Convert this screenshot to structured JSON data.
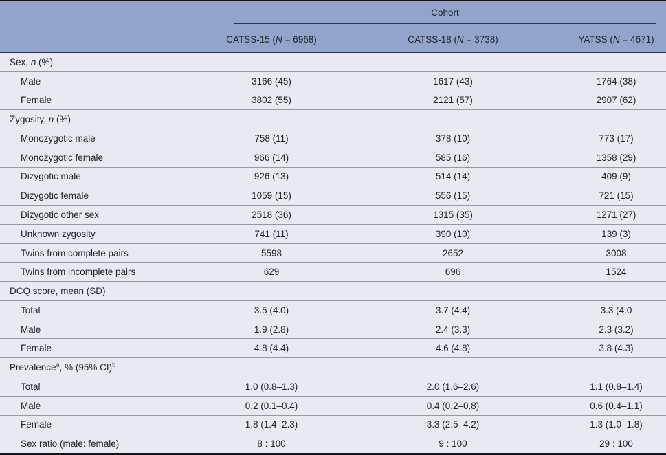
{
  "colors": {
    "header_bg": "#92A4CB",
    "body_bg": "#E8EAF3",
    "row_separator": "#9199A9",
    "dark_rule": "#2F3542",
    "border_black": "#111318",
    "text": "#1E222B"
  },
  "header": {
    "span_label": "Cohort",
    "columns": [
      {
        "name": "CATSS-15",
        "n_label": "N",
        "n_value": "6968"
      },
      {
        "name": "CATSS-18",
        "n_label": "N",
        "n_value": "3738"
      },
      {
        "name": "YATSS",
        "n_label": "N",
        "n_value": "4671"
      }
    ]
  },
  "rows": [
    {
      "kind": "section",
      "parts": [
        {
          "t": "Sex, "
        },
        {
          "t": "n",
          "s": "i"
        },
        {
          "t": " (%)"
        }
      ],
      "values": [
        "",
        "",
        ""
      ]
    },
    {
      "kind": "data",
      "parts": [
        {
          "t": "Male"
        }
      ],
      "values": [
        "3166 (45)",
        "1617 (43)",
        "1764 (38)"
      ]
    },
    {
      "kind": "data",
      "parts": [
        {
          "t": "Female"
        }
      ],
      "values": [
        "3802 (55)",
        "2121 (57)",
        "2907 (62)"
      ]
    },
    {
      "kind": "section",
      "parts": [
        {
          "t": "Zygosity, "
        },
        {
          "t": "n",
          "s": "i"
        },
        {
          "t": " (%)"
        }
      ],
      "values": [
        "",
        "",
        ""
      ]
    },
    {
      "kind": "data",
      "parts": [
        {
          "t": "Monozygotic male"
        }
      ],
      "values": [
        "758 (11)",
        "378 (10)",
        "773 (17)"
      ]
    },
    {
      "kind": "data",
      "parts": [
        {
          "t": "Monozygotic female"
        }
      ],
      "values": [
        "966 (14)",
        "585 (16)",
        "1358 (29)"
      ]
    },
    {
      "kind": "data",
      "parts": [
        {
          "t": "Dizygotic male"
        }
      ],
      "values": [
        "926 (13)",
        "514 (14)",
        "409 (9)"
      ]
    },
    {
      "kind": "data",
      "parts": [
        {
          "t": "Dizygotic female"
        }
      ],
      "values": [
        "1059 (15)",
        "556 (15)",
        "721 (15)"
      ]
    },
    {
      "kind": "data",
      "parts": [
        {
          "t": "Dizygotic other sex"
        }
      ],
      "values": [
        "2518 (36)",
        "1315 (35)",
        "1271 (27)"
      ]
    },
    {
      "kind": "data",
      "parts": [
        {
          "t": "Unknown zygosity"
        }
      ],
      "values": [
        "741 (11)",
        "390 (10)",
        "139 (3)"
      ]
    },
    {
      "kind": "data",
      "parts": [
        {
          "t": "Twins from complete pairs"
        }
      ],
      "values": [
        "5598",
        "2652",
        "3008"
      ]
    },
    {
      "kind": "data",
      "parts": [
        {
          "t": "Twins from incomplete pairs"
        }
      ],
      "values": [
        "629",
        "696",
        "1524"
      ]
    },
    {
      "kind": "section",
      "parts": [
        {
          "t": "DCQ score, mean (SD)"
        }
      ],
      "values": [
        "",
        "",
        ""
      ]
    },
    {
      "kind": "data",
      "parts": [
        {
          "t": "Total"
        }
      ],
      "values": [
        "3.5 (4.0)",
        "3.7 (4.4)",
        "3.3 (4.0"
      ]
    },
    {
      "kind": "data",
      "parts": [
        {
          "t": "Male"
        }
      ],
      "values": [
        "1.9 (2.8)",
        "2.4 (3.3)",
        "2.3 (3.2)"
      ]
    },
    {
      "kind": "data",
      "parts": [
        {
          "t": "Female"
        }
      ],
      "values": [
        "4.8 (4.4)",
        "4.6 (4.8)",
        "3.8 (4.3)"
      ]
    },
    {
      "kind": "section",
      "parts": [
        {
          "t": "Prevalence"
        },
        {
          "t": "a",
          "s": "sup"
        },
        {
          "t": ", % (95% CI)"
        },
        {
          "t": "b",
          "s": "sup"
        }
      ],
      "values": [
        "",
        "",
        ""
      ]
    },
    {
      "kind": "data",
      "parts": [
        {
          "t": "Total"
        }
      ],
      "values": [
        "1.0 (0.8–1.3)",
        "2.0 (1.6–2.6)",
        "1.1 (0.8–1.4)"
      ]
    },
    {
      "kind": "data",
      "parts": [
        {
          "t": "Male"
        }
      ],
      "values": [
        "0.2 (0.1–0.4)",
        "0.4 (0.2–0.8)",
        "0.6 (0.4–1.1)"
      ]
    },
    {
      "kind": "data",
      "parts": [
        {
          "t": "Female"
        }
      ],
      "values": [
        "1.8 (1.4–2.3)",
        "3.3 (2.5–4.2)",
        "1.3 (1.0–1.8)"
      ]
    },
    {
      "kind": "data",
      "parts": [
        {
          "t": "Sex ratio (male: female)"
        }
      ],
      "values": [
        "8 : 100",
        "9 : 100",
        "29 : 100"
      ]
    }
  ]
}
